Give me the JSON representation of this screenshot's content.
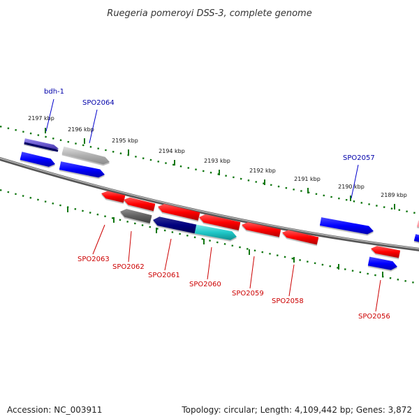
{
  "title": "Ruegeria pomeroyi DSS-3, complete genome",
  "footer": {
    "accession": "Accession: NC_003911",
    "summary": "Topology: circular; Length: 4,109,442 bp; Genes: 3,872"
  },
  "colors": {
    "forward": "#0000ff",
    "reverse": "#ff0000",
    "label_forward": "#0000aa",
    "label_reverse": "#cc0000",
    "backbone": "#808080",
    "tick": "#117711",
    "cds_dark": "#000080",
    "cds_gray": "#b0b0b0",
    "cds_darkgray": "#606060",
    "cds_cyan": "#20c8c8",
    "cds_purple": "#6a5acd",
    "cds_pink": "#ff9aa2"
  },
  "scale": {
    "unit": "kbp",
    "labels": [
      "2197 kbp",
      "2196 kbp",
      "2195 kbp",
      "2194 kbp",
      "2193 kbp",
      "2192 kbp",
      "2191 kbp",
      "2190 kbp",
      "2189 kbp"
    ]
  },
  "genes": {
    "forward": [
      "bdh-1",
      "SPO2064",
      "SPO2057"
    ],
    "reverse": [
      "SPO2063",
      "SPO2062",
      "SPO2061",
      "SPO2060",
      "SPO2059",
      "SPO2058",
      "SPO2056"
    ]
  }
}
